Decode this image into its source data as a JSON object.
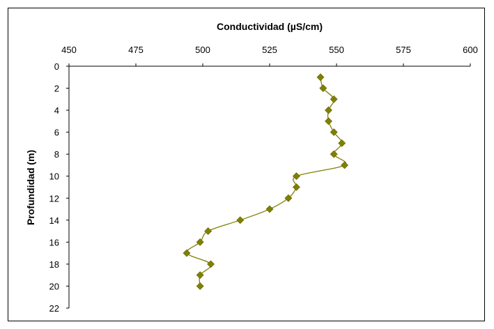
{
  "chart_data": {
    "type": "line",
    "title": "",
    "xlabel": "Conductividad (µS/cm)",
    "ylabel": "Profundidad (m)",
    "xlim": [
      450,
      600
    ],
    "ylim": [
      0,
      22
    ],
    "x_ticks": [
      "450",
      "475",
      "500",
      "525",
      "550",
      "575",
      "600"
    ],
    "y_ticks": [
      "0",
      "2",
      "4",
      "6",
      "8",
      "10",
      "12",
      "14",
      "16",
      "18",
      "20",
      "22"
    ],
    "x_axis_position": "top",
    "y_axis_inverted": true,
    "grid": false,
    "legend": "none",
    "marker": "diamond",
    "line_smoothed": true,
    "series_color": "#808000",
    "series": [
      {
        "points": [
          {
            "x": 544,
            "y": 1
          },
          {
            "x": 545,
            "y": 2
          },
          {
            "x": 549,
            "y": 3
          },
          {
            "x": 547,
            "y": 4
          },
          {
            "x": 547,
            "y": 5
          },
          {
            "x": 549,
            "y": 6
          },
          {
            "x": 552,
            "y": 7
          },
          {
            "x": 549,
            "y": 8
          },
          {
            "x": 553,
            "y": 9
          },
          {
            "x": 535,
            "y": 10
          },
          {
            "x": 535,
            "y": 11
          },
          {
            "x": 532,
            "y": 12
          },
          {
            "x": 525,
            "y": 13
          },
          {
            "x": 514,
            "y": 14
          },
          {
            "x": 502,
            "y": 15
          },
          {
            "x": 499,
            "y": 16
          },
          {
            "x": 494,
            "y": 17
          },
          {
            "x": 503,
            "y": 18
          },
          {
            "x": 499,
            "y": 19
          },
          {
            "x": 499,
            "y": 20
          }
        ]
      }
    ]
  }
}
